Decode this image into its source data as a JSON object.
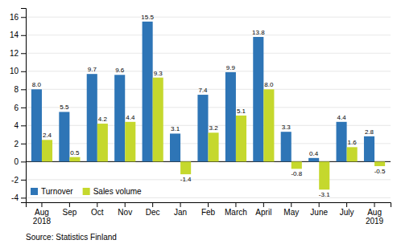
{
  "chart_data": {
    "type": "bar",
    "categories": [
      "Aug\n2018",
      "Sep",
      "Oct",
      "Nov",
      "Dec",
      "Jan",
      "Feb",
      "March",
      "April",
      "May",
      "June",
      "July",
      "Aug\n2019"
    ],
    "series": [
      {
        "name": "Turnover",
        "color": "#2E75B6",
        "values": [
          8.0,
          5.5,
          9.7,
          9.6,
          15.5,
          3.1,
          7.4,
          9.9,
          13.8,
          3.3,
          0.4,
          4.4,
          2.8
        ],
        "value_labels": [
          "8.0",
          "5.5",
          "9.7",
          "9.6",
          "15.5",
          "3.1",
          "7.4",
          "9.9",
          "13.8",
          "3.3",
          "0.4",
          "4.4",
          "2.8"
        ]
      },
      {
        "name": "Sales volume",
        "color": "#C5D82D",
        "values": [
          2.4,
          0.5,
          4.2,
          4.4,
          9.3,
          -1.4,
          3.2,
          5.1,
          8.0,
          -0.8,
          -3.1,
          1.6,
          -0.5
        ],
        "value_labels": [
          "2.4",
          "0.5",
          "4.2",
          "4.4",
          "9.3",
          "-1.4",
          "3.2",
          "5.1",
          "8.0",
          "-0.8",
          "-3.1",
          "1.6",
          "-0.5"
        ]
      }
    ],
    "ylim": [
      -4.5,
      17.0
    ],
    "yticks": [
      -4,
      -2,
      0,
      2,
      4,
      6,
      8,
      10,
      12,
      14,
      16
    ],
    "grid": true,
    "legend": "lower left",
    "data_labels": true,
    "annotations": [
      "Source: Statistics Finland"
    ]
  }
}
